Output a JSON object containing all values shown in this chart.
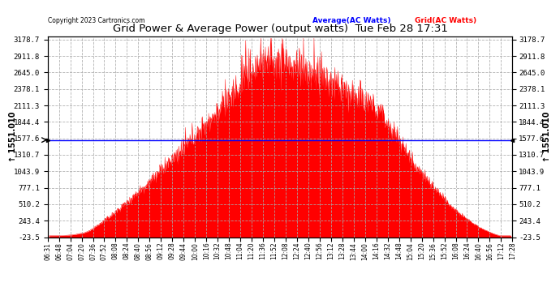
{
  "title": "Grid Power & Average Power (output watts)  Tue Feb 28 17:31",
  "copyright": "Copyright 2023 Cartronics.com",
  "legend_average": "Average(AC Watts)",
  "legend_grid": "Grid(AC Watts)",
  "average_value": 1551.01,
  "y_ticks": [
    3178.7,
    2911.8,
    2645.0,
    2378.1,
    2111.3,
    1844.4,
    1577.6,
    1310.7,
    1043.9,
    777.1,
    510.2,
    243.4,
    -23.5
  ],
  "x_tick_labels": [
    "06:31",
    "06:48",
    "07:04",
    "07:20",
    "07:36",
    "07:52",
    "08:08",
    "08:24",
    "08:40",
    "08:56",
    "09:12",
    "09:28",
    "09:44",
    "10:00",
    "10:16",
    "10:32",
    "10:48",
    "11:04",
    "11:20",
    "11:36",
    "11:52",
    "12:08",
    "12:24",
    "12:40",
    "12:56",
    "13:12",
    "13:28",
    "13:44",
    "14:00",
    "14:16",
    "14:32",
    "14:48",
    "15:04",
    "15:20",
    "15:36",
    "15:52",
    "16:08",
    "16:24",
    "16:40",
    "16:56",
    "17:12",
    "17:28"
  ],
  "color_fill": "#ff0000",
  "color_line": "#0000ff",
  "color_grid": "#aaaaaa",
  "background": "#ffffff",
  "title_color": "#000000",
  "copyright_color": "#000000",
  "legend_avg_color": "#0000ff",
  "legend_grid_color": "#ff0000",
  "ymin": -23.5,
  "ymax": 3178.7
}
